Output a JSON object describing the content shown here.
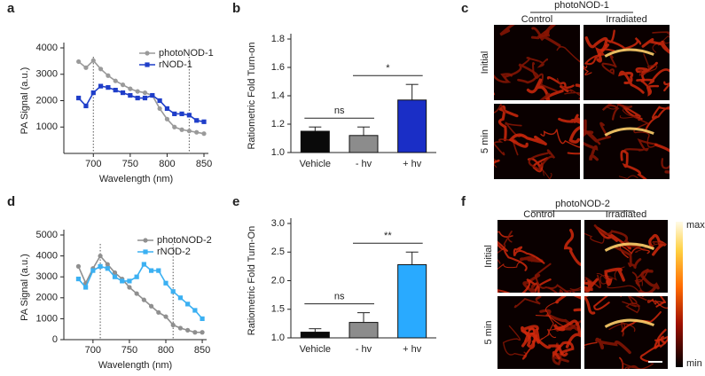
{
  "chart_data": [
    {
      "type": "line",
      "panel": "a",
      "xlabel": "Wavelength (nm)",
      "ylabel": "PA Signal (a.u.)",
      "x": [
        680,
        690,
        700,
        710,
        720,
        730,
        740,
        750,
        760,
        770,
        780,
        790,
        800,
        810,
        820,
        830,
        840,
        850
      ],
      "series": [
        {
          "name": "photoNOD-1",
          "color": "#9a9a9a",
          "marker": "circle",
          "values": [
            3480,
            3250,
            3520,
            3200,
            2950,
            2750,
            2600,
            2450,
            2350,
            2300,
            2200,
            1700,
            1300,
            1000,
            900,
            850,
            800,
            750
          ]
        },
        {
          "name": "rNOD-1",
          "color": "#1f3ec9",
          "marker": "square",
          "values": [
            2100,
            1800,
            2300,
            2550,
            2500,
            2400,
            2300,
            2200,
            2100,
            2100,
            2200,
            2000,
            1700,
            1500,
            1500,
            1450,
            1250,
            1200
          ]
        }
      ],
      "xlim": [
        660,
        856
      ],
      "xticks": [
        700,
        750,
        800,
        850
      ],
      "ylim": [
        0,
        4000
      ],
      "yticks": [
        1000,
        2000,
        3000,
        4000
      ],
      "vlines": [
        700,
        830
      ],
      "legend": "top-right"
    },
    {
      "type": "bar",
      "panel": "b",
      "ylabel": "Ratiometric Fold Turn-on",
      "categories": [
        "Vehicle",
        "- hv",
        "+ hv"
      ],
      "values": [
        1.15,
        1.12,
        1.37
      ],
      "errors": [
        0.03,
        0.06,
        0.11
      ],
      "colors": [
        "#0a0a0a",
        "#8c8c8c",
        "#1a2ec6"
      ],
      "ylim": [
        1,
        1.8
      ],
      "yticks": [
        {
          "value": 1,
          "label": "1.0"
        },
        1.2,
        1.4,
        1.6,
        1.8
      ],
      "significance": [
        {
          "label": "ns",
          "categories": [
            "Vehicle",
            "- hv"
          ]
        },
        {
          "label": "*",
          "categories": [
            "- hv",
            "+ hv"
          ]
        }
      ]
    },
    {
      "type": "line",
      "panel": "d",
      "xlabel": "Wavelength (nm)",
      "ylabel": "PA Signal (a.u.)",
      "x": [
        680,
        690,
        700,
        710,
        720,
        730,
        740,
        750,
        760,
        770,
        780,
        790,
        800,
        810,
        820,
        830,
        840,
        850
      ],
      "series": [
        {
          "name": "photoNOD-2",
          "color": "#8f8f8f",
          "marker": "circle",
          "values": [
            3500,
            2700,
            3400,
            4000,
            3600,
            3200,
            2900,
            2500,
            2200,
            1900,
            1600,
            1300,
            1100,
            700,
            550,
            450,
            350,
            350
          ]
        },
        {
          "name": "rNOD-2",
          "color": "#3bb0f2",
          "marker": "square",
          "values": [
            2900,
            2500,
            3300,
            3500,
            3400,
            3000,
            2800,
            2800,
            3000,
            3600,
            3300,
            3300,
            2700,
            2300,
            2000,
            1700,
            1400,
            1000
          ]
        }
      ],
      "xlim": [
        660,
        856
      ],
      "xticks": [
        700,
        750,
        800,
        850
      ],
      "ylim": [
        0,
        5000
      ],
      "yticks": [
        0,
        1000,
        2000,
        3000,
        4000,
        5000
      ],
      "vlines": [
        710,
        810
      ],
      "legend": "top-right"
    },
    {
      "type": "bar",
      "panel": "e",
      "ylabel": "Ratiometric Fold Turn-On",
      "categories": [
        "Vehicle",
        "- hv",
        "+ hv"
      ],
      "values": [
        1.1,
        1.27,
        2.28
      ],
      "errors": [
        0.06,
        0.17,
        0.22
      ],
      "colors": [
        "#0a0a0a",
        "#8c8c8c",
        "#29aaff"
      ],
      "ylim": [
        1,
        3
      ],
      "yticks": [
        {
          "value": 1,
          "label": "1.0"
        },
        1.5,
        {
          "value": 2,
          "label": "2.0"
        },
        2.5,
        {
          "value": 3,
          "label": "3.0"
        }
      ],
      "significance": [
        {
          "label": "ns",
          "categories": [
            "Vehicle",
            "- hv"
          ]
        },
        {
          "label": "**",
          "categories": [
            "- hv",
            "+ hv"
          ]
        }
      ]
    }
  ],
  "image_panels": [
    {
      "panel": "c",
      "title": "photoNOD-1",
      "columns": [
        "Control",
        "Irradiated"
      ],
      "rows": [
        "Initial",
        "5 min"
      ]
    },
    {
      "panel": "f",
      "title": "photoNOD-2",
      "columns": [
        "Control",
        "Irradiated"
      ],
      "rows": [
        "Initial",
        "5 min"
      ],
      "colorbar_labels": [
        "max",
        "min"
      ]
    }
  ]
}
